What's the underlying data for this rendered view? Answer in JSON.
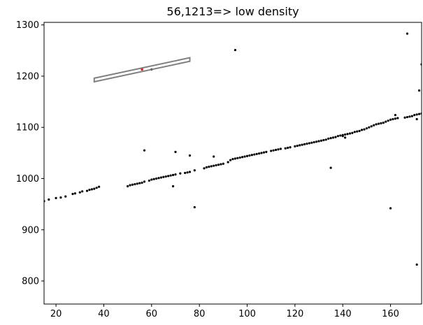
{
  "chart_data": {
    "type": "scatter",
    "title": "56,1213=> low density",
    "xlabel": "",
    "ylabel": "",
    "xlim": [
      15,
      173
    ],
    "ylim": [
      755,
      1305
    ],
    "x_ticks": [
      20,
      40,
      60,
      80,
      100,
      120,
      140,
      160
    ],
    "y_ticks": [
      800,
      900,
      1000,
      1100,
      1200,
      1300
    ],
    "grid": false,
    "point_color": "#000000",
    "highlight_color": "#d62728",
    "box_color": "#808080",
    "highlight_point": {
      "x": 56,
      "y": 1213
    },
    "box": {
      "corners": [
        [
          36,
          1196
        ],
        [
          76,
          1236
        ],
        [
          76,
          1229
        ],
        [
          36,
          1189
        ]
      ]
    },
    "series": [
      {
        "points": [
          [
            15,
            956
          ],
          [
            17,
            959
          ],
          [
            20,
            962
          ],
          [
            22,
            963
          ],
          [
            24,
            965
          ],
          [
            27,
            970
          ],
          [
            28,
            971
          ],
          [
            30,
            973
          ],
          [
            31,
            975
          ],
          [
            33,
            976
          ],
          [
            34,
            978
          ],
          [
            35,
            979
          ],
          [
            36,
            980
          ],
          [
            37,
            982
          ],
          [
            38,
            984
          ],
          [
            50,
            985
          ],
          [
            51,
            987
          ],
          [
            52,
            988
          ],
          [
            53,
            989
          ],
          [
            54,
            990
          ],
          [
            55,
            991
          ],
          [
            56,
            992
          ],
          [
            57,
            994
          ],
          [
            59,
            996
          ],
          [
            60,
            998
          ],
          [
            61,
            999
          ],
          [
            62,
            1000
          ],
          [
            63,
            1001
          ],
          [
            64,
            1002
          ],
          [
            65,
            1003
          ],
          [
            66,
            1004
          ],
          [
            67,
            1005
          ],
          [
            68,
            1006
          ],
          [
            69,
            1007
          ],
          [
            70,
            1008
          ],
          [
            72,
            1010
          ],
          [
            74,
            1011
          ],
          [
            75,
            1012
          ],
          [
            76,
            1013
          ],
          [
            78,
            1016
          ],
          [
            82,
            1020
          ],
          [
            83,
            1022
          ],
          [
            84,
            1023
          ],
          [
            85,
            1024
          ],
          [
            86,
            1025
          ],
          [
            87,
            1026
          ],
          [
            88,
            1027
          ],
          [
            89,
            1028
          ],
          [
            90,
            1029
          ],
          [
            92,
            1032
          ],
          [
            93,
            1036
          ],
          [
            94,
            1038
          ],
          [
            95,
            1039
          ],
          [
            96,
            1040
          ],
          [
            97,
            1041
          ],
          [
            98,
            1042
          ],
          [
            99,
            1043
          ],
          [
            100,
            1044
          ],
          [
            101,
            1045
          ],
          [
            102,
            1046
          ],
          [
            103,
            1047
          ],
          [
            104,
            1048
          ],
          [
            105,
            1049
          ],
          [
            106,
            1050
          ],
          [
            107,
            1051
          ],
          [
            108,
            1052
          ],
          [
            110,
            1054
          ],
          [
            111,
            1055
          ],
          [
            112,
            1056
          ],
          [
            113,
            1057
          ],
          [
            114,
            1058
          ],
          [
            116,
            1059
          ],
          [
            117,
            1060
          ],
          [
            118,
            1061
          ],
          [
            120,
            1063
          ],
          [
            121,
            1064
          ],
          [
            122,
            1065
          ],
          [
            123,
            1066
          ],
          [
            124,
            1067
          ],
          [
            125,
            1068
          ],
          [
            126,
            1069
          ],
          [
            127,
            1070
          ],
          [
            128,
            1071
          ],
          [
            129,
            1072
          ],
          [
            130,
            1073
          ],
          [
            131,
            1074
          ],
          [
            132,
            1075
          ],
          [
            133,
            1076
          ],
          [
            134,
            1078
          ],
          [
            135,
            1079
          ],
          [
            136,
            1080
          ],
          [
            137,
            1081
          ],
          [
            138,
            1083
          ],
          [
            139,
            1084
          ],
          [
            140,
            1085
          ],
          [
            141,
            1086
          ],
          [
            142,
            1087
          ],
          [
            143,
            1088
          ],
          [
            144,
            1089
          ],
          [
            145,
            1091
          ],
          [
            146,
            1092
          ],
          [
            147,
            1093
          ],
          [
            148,
            1095
          ],
          [
            149,
            1096
          ],
          [
            150,
            1098
          ],
          [
            151,
            1100
          ],
          [
            152,
            1102
          ],
          [
            153,
            1104
          ],
          [
            154,
            1106
          ],
          [
            155,
            1107
          ],
          [
            156,
            1108
          ],
          [
            157,
            1109
          ],
          [
            158,
            1111
          ],
          [
            159,
            1113
          ],
          [
            160,
            1115
          ],
          [
            161,
            1116
          ],
          [
            162,
            1117
          ],
          [
            163,
            1118
          ],
          [
            166,
            1119
          ],
          [
            167,
            1120
          ],
          [
            168,
            1121
          ],
          [
            169,
            1122
          ],
          [
            170,
            1124
          ],
          [
            171,
            1125
          ],
          [
            172,
            1126
          ],
          [
            173,
            1127
          ],
          [
            57,
            1055
          ],
          [
            60,
            1213
          ],
          [
            70,
            1052
          ],
          [
            76,
            1045
          ],
          [
            86,
            1043
          ],
          [
            69,
            985
          ],
          [
            78,
            944
          ],
          [
            95,
            1251
          ],
          [
            135,
            1021
          ],
          [
            140,
            1083
          ],
          [
            141,
            1080
          ],
          [
            160,
            942
          ],
          [
            162,
            1124
          ],
          [
            167,
            1283
          ],
          [
            171,
            1116
          ],
          [
            171,
            832
          ],
          [
            172,
            1172
          ],
          [
            173,
            1223
          ]
        ]
      }
    ]
  }
}
